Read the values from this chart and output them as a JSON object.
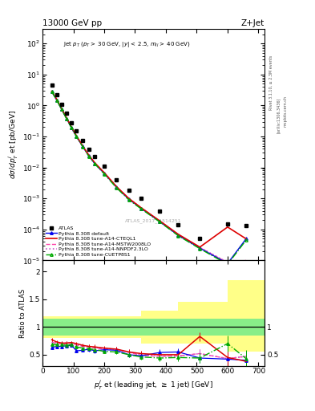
{
  "title_left": "13000 GeV pp",
  "title_right": "Z+Jet",
  "watermark": "ATLAS_2017_I1514251",
  "atlas_x": [
    30,
    46,
    62,
    78,
    94,
    110,
    130,
    150,
    170,
    200,
    240,
    280,
    320,
    380,
    440,
    510,
    600,
    660
  ],
  "atlas_y": [
    4.5,
    2.2,
    1.1,
    0.55,
    0.28,
    0.15,
    0.075,
    0.038,
    0.022,
    0.011,
    0.004,
    0.0018,
    0.001,
    0.0004,
    0.00014,
    5e-05,
    0.00015,
    0.00013
  ],
  "pythia_x": [
    30,
    46,
    62,
    78,
    94,
    110,
    130,
    150,
    170,
    200,
    240,
    280,
    320,
    380,
    440,
    510,
    600,
    660
  ],
  "default_y": [
    2.8,
    1.5,
    0.75,
    0.38,
    0.19,
    0.1,
    0.048,
    0.024,
    0.013,
    0.0065,
    0.0023,
    0.00095,
    0.00048,
    0.00018,
    6.5e-05,
    2.5e-05,
    8e-06,
    5e-05
  ],
  "cteql1_y": [
    2.9,
    1.6,
    0.78,
    0.4,
    0.2,
    0.105,
    0.05,
    0.025,
    0.014,
    0.0068,
    0.0024,
    0.001,
    0.0005,
    0.00019,
    7e-05,
    2.7e-05,
    0.00012,
    5e-05
  ],
  "mstw_y": [
    2.85,
    1.55,
    0.77,
    0.39,
    0.195,
    0.102,
    0.049,
    0.0245,
    0.0135,
    0.0067,
    0.00235,
    0.00097,
    0.00049,
    0.000185,
    6.7e-05,
    2.6e-05,
    8.5e-06,
    1e-05
  ],
  "nnpdf_y": [
    2.88,
    1.58,
    0.79,
    0.395,
    0.198,
    0.104,
    0.05,
    0.025,
    0.0138,
    0.0068,
    0.0024,
    0.00099,
    0.0005,
    0.000187,
    6.8e-05,
    2.62e-05,
    8.7e-06,
    1e-05
  ],
  "cuetp8s1_y": [
    2.8,
    1.5,
    0.75,
    0.37,
    0.19,
    0.099,
    0.047,
    0.023,
    0.013,
    0.0062,
    0.0022,
    0.0009,
    0.00046,
    0.000175,
    6.3e-05,
    2.4e-05,
    7.5e-06,
    4.5e-05
  ],
  "band_edges": [
    0,
    110,
    200,
    320,
    440,
    600,
    720
  ],
  "green_low": [
    0.85,
    0.85,
    0.85,
    0.85,
    0.85,
    0.85
  ],
  "green_high": [
    1.15,
    1.15,
    1.15,
    1.15,
    1.15,
    1.15
  ],
  "yellow_low": [
    0.8,
    0.8,
    0.8,
    0.7,
    0.7,
    0.55
  ],
  "yellow_high": [
    1.2,
    1.2,
    1.2,
    1.3,
    1.45,
    1.85
  ],
  "ratio_default_y": [
    0.63,
    0.65,
    0.65,
    0.66,
    0.67,
    0.57,
    0.58,
    0.6,
    0.57,
    0.59,
    0.58,
    0.5,
    0.48,
    0.54,
    0.55,
    0.44,
    0.42,
    0.4
  ],
  "ratio_cteql1_y": [
    0.77,
    0.73,
    0.71,
    0.71,
    0.72,
    0.7,
    0.67,
    0.65,
    0.64,
    0.62,
    0.6,
    0.55,
    0.52,
    0.5,
    0.5,
    0.83,
    0.45,
    0.38
  ],
  "ratio_mstw_y": [
    0.73,
    0.7,
    0.7,
    0.7,
    0.7,
    0.67,
    0.65,
    0.64,
    0.62,
    0.6,
    0.6,
    0.54,
    0.49,
    0.47,
    0.48,
    0.52,
    0.43,
    0.47
  ],
  "ratio_nnpdf_y": [
    0.72,
    0.72,
    0.72,
    0.71,
    0.71,
    0.68,
    0.66,
    0.65,
    0.63,
    0.61,
    0.6,
    0.55,
    0.5,
    0.48,
    0.47,
    0.52,
    0.43,
    0.47
  ],
  "ratio_cuetp8s1_y": [
    0.69,
    0.68,
    0.68,
    0.67,
    0.68,
    0.64,
    0.62,
    0.61,
    0.59,
    0.56,
    0.55,
    0.5,
    0.46,
    0.44,
    0.45,
    0.44,
    0.7,
    0.43
  ],
  "ratio_default_yerr": [
    0.03,
    0.03,
    0.03,
    0.03,
    0.03,
    0.03,
    0.03,
    0.04,
    0.04,
    0.04,
    0.04,
    0.05,
    0.05,
    0.06,
    0.07,
    0.08,
    0.1,
    0.15
  ],
  "ratio_cteql1_yerr": [
    0.03,
    0.03,
    0.03,
    0.03,
    0.03,
    0.03,
    0.03,
    0.04,
    0.04,
    0.04,
    0.04,
    0.05,
    0.05,
    0.06,
    0.07,
    0.08,
    0.2,
    0.15
  ],
  "ratio_mstw_yerr": [
    0.03,
    0.03,
    0.03,
    0.03,
    0.03,
    0.03,
    0.03,
    0.04,
    0.04,
    0.04,
    0.04,
    0.05,
    0.05,
    0.06,
    0.07,
    0.08,
    0.1,
    0.1
  ],
  "ratio_nnpdf_yerr": [
    0.03,
    0.03,
    0.03,
    0.03,
    0.03,
    0.03,
    0.03,
    0.04,
    0.04,
    0.04,
    0.04,
    0.05,
    0.05,
    0.06,
    0.07,
    0.08,
    0.1,
    0.1
  ],
  "ratio_cuetp8s1_yerr": [
    0.03,
    0.03,
    0.03,
    0.03,
    0.03,
    0.03,
    0.03,
    0.04,
    0.04,
    0.04,
    0.04,
    0.05,
    0.05,
    0.06,
    0.07,
    0.08,
    0.15,
    0.15
  ],
  "color_default": "#0000ee",
  "color_cteql1": "#dd0000",
  "color_mstw": "#ff44aa",
  "color_nnpdf": "#cc55cc",
  "color_cuetp8s1": "#00aa00",
  "color_atlas": "#000000",
  "color_green_band": "#88ee88",
  "color_yellow_band": "#ffff88",
  "xlim": [
    0,
    720
  ],
  "ylim_main": [
    1e-05,
    300
  ],
  "ylim_ratio": [
    0.3,
    2.2
  ]
}
